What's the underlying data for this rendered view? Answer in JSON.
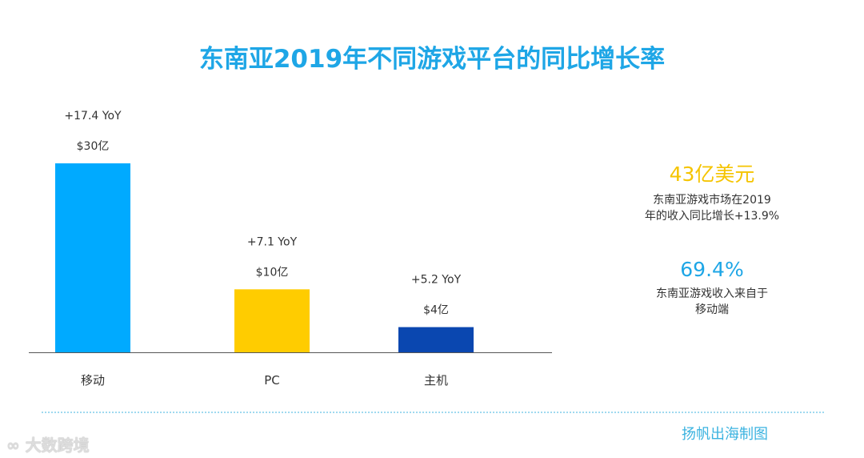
{
  "chart_data": {
    "type": "bar",
    "title": "东南亚2019年不同游戏平台的同比增长率",
    "categories": [
      "移动",
      "PC",
      "主机"
    ],
    "values": [
      30,
      10,
      4
    ],
    "value_labels": [
      "$30亿",
      "$10亿",
      "$4亿"
    ],
    "yoy_labels": [
      "+17.4 YoY",
      "+7.1 YoY",
      "+5.2 YoY"
    ],
    "colors": [
      "#00aaff",
      "#ffcc00",
      "#0a47b0"
    ],
    "ylim": [
      0,
      30
    ],
    "grid": false
  },
  "side": {
    "stat1": {
      "value": "43亿美元",
      "color": "#f5c400",
      "line1": "东南亚游戏市场在2019",
      "line2": "年的收入同比增长+13.9%"
    },
    "stat2": {
      "value": "69.4%",
      "color": "#1ea6e6",
      "line1": "东南亚游戏收入来自于",
      "line2": "移动端"
    }
  },
  "footer": {
    "credit": "扬帆出海制图",
    "logo": "大数跨境"
  }
}
